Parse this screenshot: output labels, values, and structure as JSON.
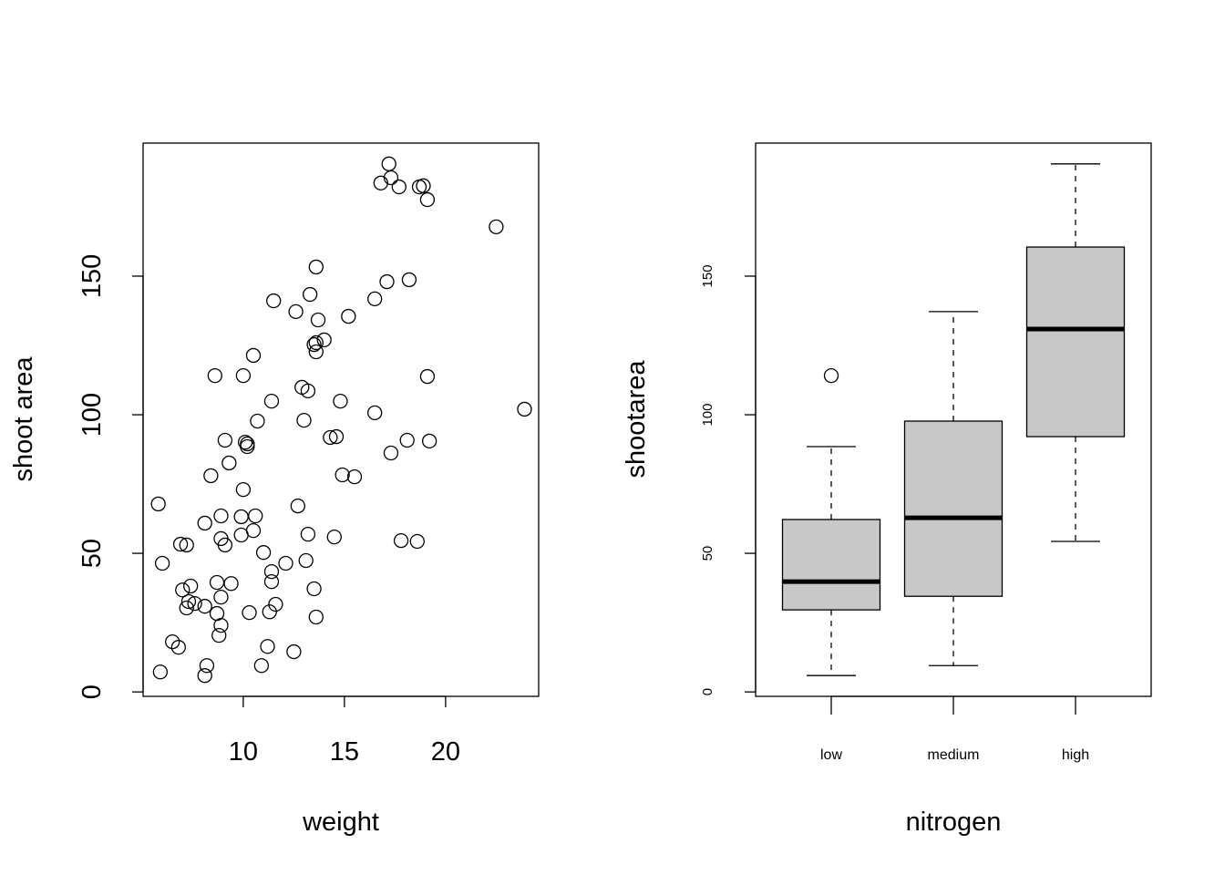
{
  "chart_data": [
    {
      "type": "scatter",
      "xlabel": "weight",
      "ylabel": "shoot area",
      "xlim": [
        5.05,
        24.6
      ],
      "ylim": [
        -1.6,
        198
      ],
      "xticks": [
        10,
        15,
        20
      ],
      "yticks": [
        0,
        50,
        100,
        150
      ],
      "grid": false,
      "marker": "open-circle",
      "points": [
        [
          17.2,
          190.5
        ],
        [
          16.8,
          183.6
        ],
        [
          17.3,
          185.5
        ],
        [
          17.7,
          182.2
        ],
        [
          18.7,
          182.2
        ],
        [
          18.9,
          182.6
        ],
        [
          19.1,
          177.6
        ],
        [
          22.5,
          167.8
        ],
        [
          13.6,
          153.3
        ],
        [
          17.1,
          148.0
        ],
        [
          18.2,
          148.7
        ],
        [
          11.5,
          141.1
        ],
        [
          13.3,
          143.4
        ],
        [
          12.6,
          137.2
        ],
        [
          16.5,
          141.8
        ],
        [
          13.7,
          134.2
        ],
        [
          15.2,
          135.5
        ],
        [
          13.5,
          125.3
        ],
        [
          14.0,
          127.0
        ],
        [
          13.6,
          126.0
        ],
        [
          13.6,
          122.7
        ],
        [
          10.5,
          121.4
        ],
        [
          8.6,
          114.1
        ],
        [
          10.0,
          114.1
        ],
        [
          19.1,
          113.8
        ],
        [
          11.4,
          104.9
        ],
        [
          12.9,
          109.9
        ],
        [
          13.2,
          108.6
        ],
        [
          14.8,
          104.9
        ],
        [
          16.5,
          100.7
        ],
        [
          23.9,
          102.0
        ],
        [
          13.0,
          98.0
        ],
        [
          10.7,
          97.7
        ],
        [
          9.1,
          90.8
        ],
        [
          10.1,
          90.1
        ],
        [
          10.2,
          89.5
        ],
        [
          10.2,
          88.5
        ],
        [
          18.1,
          90.8
        ],
        [
          19.2,
          90.5
        ],
        [
          14.3,
          91.8
        ],
        [
          14.6,
          92.1
        ],
        [
          17.3,
          86.2
        ],
        [
          9.3,
          82.6
        ],
        [
          8.4,
          78.0
        ],
        [
          14.9,
          78.3
        ],
        [
          15.5,
          77.6
        ],
        [
          10.0,
          73.0
        ],
        [
          5.8,
          67.8
        ],
        [
          12.7,
          67.1
        ],
        [
          8.9,
          63.5
        ],
        [
          9.9,
          63.2
        ],
        [
          10.6,
          63.5
        ],
        [
          8.1,
          60.9
        ],
        [
          10.5,
          58.2
        ],
        [
          13.2,
          56.9
        ],
        [
          9.9,
          56.6
        ],
        [
          8.9,
          55.3
        ],
        [
          9.1,
          53.0
        ],
        [
          14.5,
          55.9
        ],
        [
          6.9,
          53.3
        ],
        [
          7.2,
          53.0
        ],
        [
          17.8,
          54.6
        ],
        [
          18.6,
          54.3
        ],
        [
          11.0,
          50.3
        ],
        [
          6.0,
          46.4
        ],
        [
          12.1,
          46.4
        ],
        [
          13.1,
          47.4
        ],
        [
          11.4,
          43.4
        ],
        [
          11.4,
          39.8
        ],
        [
          8.7,
          39.5
        ],
        [
          9.4,
          39.1
        ],
        [
          7.4,
          38.2
        ],
        [
          7.0,
          36.8
        ],
        [
          13.5,
          37.2
        ],
        [
          8.9,
          34.2
        ],
        [
          7.3,
          32.6
        ],
        [
          7.6,
          31.9
        ],
        [
          7.2,
          30.3
        ],
        [
          8.1,
          30.9
        ],
        [
          11.6,
          31.6
        ],
        [
          11.3,
          28.9
        ],
        [
          10.3,
          28.6
        ],
        [
          8.7,
          28.3
        ],
        [
          13.6,
          27.0
        ],
        [
          8.9,
          24.0
        ],
        [
          8.8,
          20.4
        ],
        [
          6.5,
          18.1
        ],
        [
          6.8,
          16.1
        ],
        [
          11.2,
          16.4
        ],
        [
          12.5,
          14.5
        ],
        [
          8.2,
          9.5
        ],
        [
          10.9,
          9.5
        ],
        [
          5.9,
          7.2
        ],
        [
          8.1,
          5.9
        ]
      ]
    },
    {
      "type": "box",
      "xlabel": "nitrogen",
      "ylabel": "shootarea",
      "ylim": [
        -1.6,
        198
      ],
      "yticks": [
        0,
        50,
        100,
        150
      ],
      "categories": [
        "low",
        "medium",
        "high"
      ],
      "box_color": "#c8c8c8",
      "boxes": [
        {
          "min": 5.9,
          "q1": 29.6,
          "median": 39.8,
          "q3": 62.2,
          "max": 88.5,
          "outliers": [
            114.1
          ]
        },
        {
          "min": 9.5,
          "q1": 34.5,
          "median": 62.8,
          "q3": 97.7,
          "max": 137.2,
          "outliers": []
        },
        {
          "min": 54.3,
          "q1": 92.1,
          "median": 130.9,
          "q3": 160.5,
          "max": 190.5,
          "outliers": []
        }
      ]
    }
  ]
}
